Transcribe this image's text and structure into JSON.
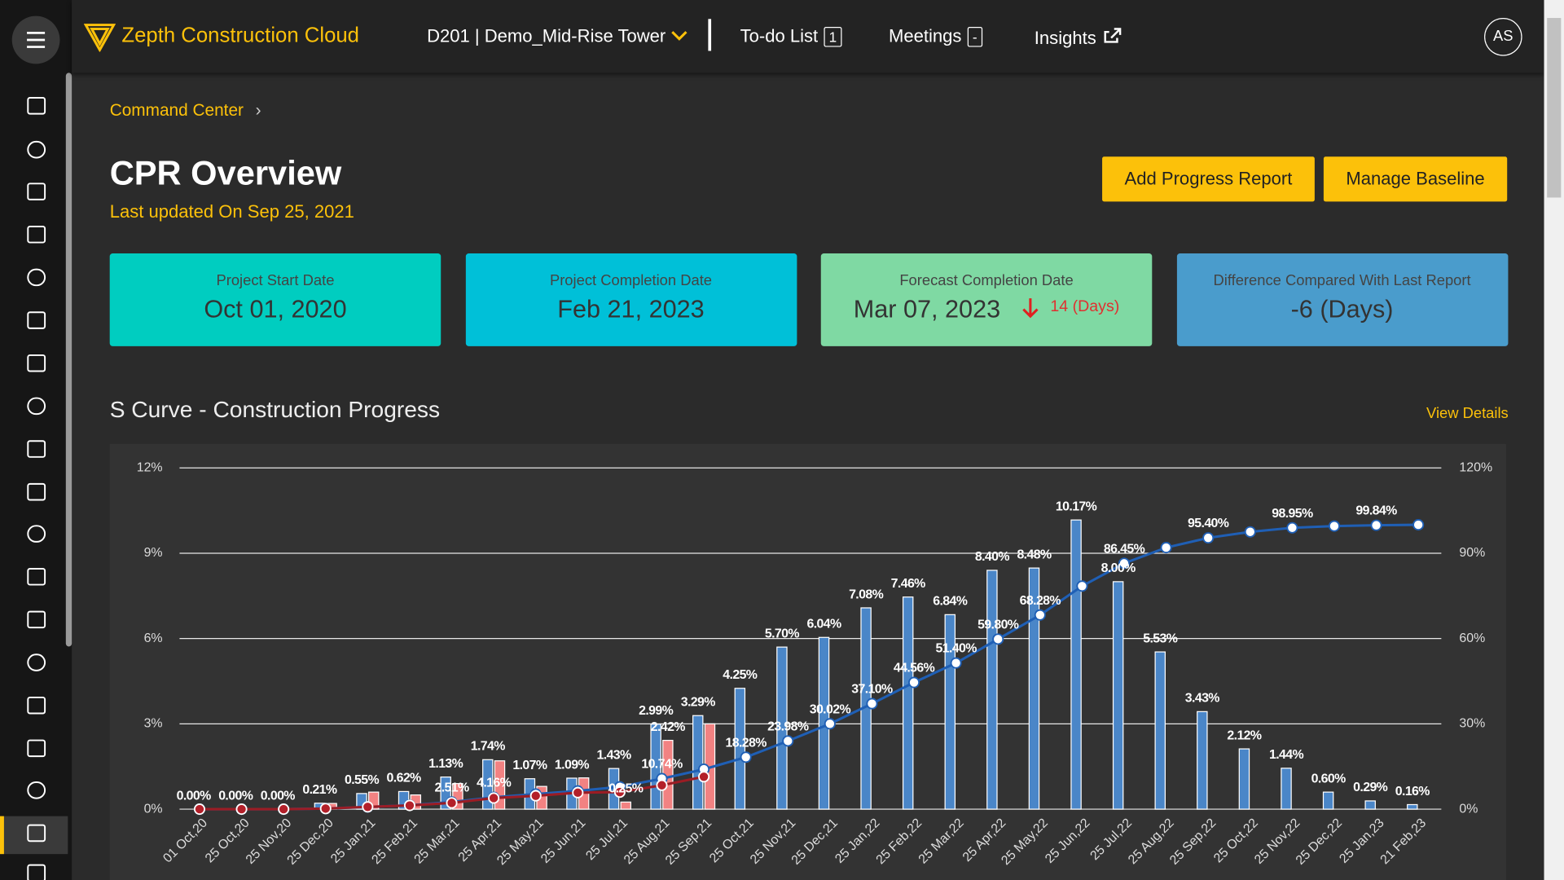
{
  "topbar": {
    "brand": "Zepth Construction Cloud",
    "project": "D201 | Demo_Mid-Rise Tower",
    "todo": {
      "label": "To-do List",
      "count": 1
    },
    "meetings": {
      "label": "Meetings",
      "count": "-"
    },
    "insights": "Insights",
    "avatar": "AS"
  },
  "breadcrumb": "Command Center",
  "header": {
    "title": "CPR Overview",
    "updated": "Last updated On Sep 25, 2021",
    "buttons": [
      "Add Progress Report",
      "Manage Baseline"
    ]
  },
  "cards": [
    {
      "label": "Project Start Date",
      "value": "Oct 01, 2020",
      "color": "#00cdc0"
    },
    {
      "label": "Project Completion Date",
      "value": "Feb 21, 2023",
      "color": "#00c0d8"
    },
    {
      "label": "Forecast Completion Date",
      "value": "Mar 07, 2023",
      "delta": "14 (Days)",
      "color": "#7fd9a3"
    },
    {
      "label": "Difference Compared With Last Report",
      "value": "-6 (Days)",
      "color": "#4a9ccc"
    }
  ],
  "section": {
    "title": "S Curve - Construction Progress",
    "link": "View Details"
  },
  "chart_data": {
    "type": "bar",
    "categories": [
      "01 Oct,20",
      "25 Oct,20",
      "25 Nov,20",
      "25 Dec,20",
      "25 Jan,21",
      "25 Feb,21",
      "25 Mar,21",
      "25 Apr,21",
      "25 May,21",
      "25 Jun,21",
      "25 Jul,21",
      "25 Aug,21",
      "25 Sep,21",
      "25 Oct,21",
      "25 Nov,21",
      "25 Dec,21",
      "25 Jan,22",
      "25 Feb,22",
      "25 Mar,22",
      "25 Apr,22",
      "25 May,22",
      "25 Jun,22",
      "25 Jul,22",
      "25 Aug,22",
      "25 Sep,22",
      "25 Oct,22",
      "25 Nov,22",
      "25 Dec,22",
      "25 Jan,23",
      "21 Feb,23"
    ],
    "series": [
      {
        "type": "bar",
        "axis": "y",
        "color": "#4a86c8",
        "values": [
          0,
          0,
          0,
          0.21,
          0.55,
          0.62,
          1.13,
          1.74,
          1.07,
          1.09,
          1.43,
          2.99,
          3.29,
          4.25,
          5.7,
          6.04,
          7.08,
          7.46,
          6.84,
          8.4,
          8.48,
          10.17,
          8.0,
          5.53,
          3.43,
          2.12,
          1.44,
          0.6,
          0.29,
          0.16
        ],
        "value_labels": [
          "0.00%",
          "0.00%",
          "0.00%",
          "0.21%",
          "0.55%",
          "0.62%",
          "1.13%",
          "1.74%",
          "1.07%",
          "1.09%",
          "1.43%",
          "2.99%",
          "3.29%",
          "4.25%",
          "5.70%",
          "6.04%",
          "7.08%",
          "7.46%",
          "6.84%",
          "8.40%",
          "8.48%",
          "10.17%",
          "8.00%",
          "5.53%",
          "3.43%",
          "2.12%",
          "1.44%",
          "0.60%",
          "0.29%",
          "0.16%"
        ]
      },
      {
        "type": "bar",
        "axis": "y",
        "color": "#f28282",
        "values": [
          0,
          0,
          0,
          0.2,
          0.6,
          0.5,
          0.9,
          1.7,
          0.8,
          1.1,
          0.25,
          2.42,
          3.0,
          null,
          null,
          null,
          null,
          null,
          null,
          null,
          null,
          null,
          null,
          null,
          null,
          null,
          null,
          null,
          null,
          null
        ],
        "value_labels": [
          null,
          null,
          null,
          null,
          null,
          null,
          null,
          null,
          null,
          null,
          "0.25%",
          "2.42%",
          null,
          null,
          null,
          null,
          null,
          null,
          null,
          null,
          null,
          null,
          null,
          null,
          null,
          null,
          null,
          null,
          null,
          null
        ]
      },
      {
        "type": "line",
        "axis": "y2",
        "color": "#1f5fb5",
        "values": [
          0,
          0,
          0,
          0.21,
          0.76,
          1.38,
          2.51,
          4.16,
          5.32,
          6.41,
          7.84,
          10.74,
          14.03,
          18.28,
          23.98,
          30.02,
          37.1,
          44.56,
          51.4,
          59.8,
          68.28,
          78.45,
          86.45,
          91.98,
          95.4,
          97.52,
          98.95,
          99.55,
          99.84,
          100
        ],
        "value_labels": [
          null,
          null,
          null,
          null,
          null,
          null,
          "2.51%",
          "4.16%",
          null,
          null,
          null,
          "10.74%",
          null,
          "18.28%",
          "23.98%",
          "30.02%",
          "37.10%",
          "44.56%",
          "51.40%",
          "59.80%",
          "68.28%",
          null,
          "86.45%",
          null,
          "95.40%",
          null,
          "98.95%",
          null,
          "99.84%",
          null
        ]
      },
      {
        "type": "line",
        "axis": "y2",
        "color": "#9b1c24",
        "values": [
          0,
          0,
          0,
          0.2,
          0.8,
          1.3,
          2.2,
          3.9,
          4.7,
          5.8,
          6.0,
          8.4,
          11.4,
          null,
          null,
          null,
          null,
          null,
          null,
          null,
          null,
          null,
          null,
          null,
          null,
          null,
          null,
          null,
          null,
          null
        ]
      }
    ],
    "ylim": [
      0,
      12
    ],
    "yticks": [
      {
        "value": 0,
        "label": "0%"
      },
      {
        "value": 3,
        "label": "3%"
      },
      {
        "value": 6,
        "label": "6%"
      },
      {
        "value": 9,
        "label": "9%"
      },
      {
        "value": 12,
        "label": "12%"
      }
    ],
    "y2lim": [
      0,
      120
    ],
    "y2ticks": [
      {
        "value": 0,
        "label": "0%"
      },
      {
        "value": 30,
        "label": "30%"
      },
      {
        "value": 60,
        "label": "60%"
      },
      {
        "value": 90,
        "label": "90%"
      },
      {
        "value": 120,
        "label": "120%"
      }
    ],
    "grid": true
  }
}
